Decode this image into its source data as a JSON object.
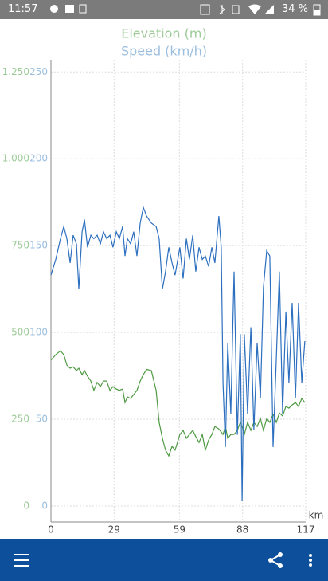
{
  "status_bar": {
    "time": "11:57",
    "battery": "34 %"
  },
  "chart_data": {
    "type": "line",
    "x_label": "km",
    "x": [
      0,
      2.2,
      4.4,
      5.9,
      7.3,
      8.8,
      10.2,
      11.7,
      12.8,
      14.3,
      15.4,
      16.8,
      18.3,
      19.7,
      21.2,
      22.7,
      24.1,
      25.6,
      27.1,
      28.5,
      30,
      31.4,
      32.9,
      34,
      35.1,
      36.6,
      38,
      39.5,
      41,
      42.4,
      43.9,
      46.1,
      48.3,
      49.7,
      51.2,
      52.6,
      54.1,
      55.6,
      57,
      59.2,
      60.7,
      62.2,
      63.6,
      65.1,
      66.5,
      68,
      69.5,
      70.9,
      72.4,
      73.9,
      75.3,
      77.1,
      78.2,
      79,
      80.1,
      81.2,
      82.6,
      84.1,
      85.6,
      87,
      87.8,
      88.8,
      90.3,
      91.8,
      93.2,
      94.7,
      96.2,
      97.6,
      99.1,
      100.5,
      102,
      103.5,
      104.9,
      106.4,
      107.9,
      109.3,
      110.8,
      112.3,
      113.7,
      115.2,
      116.6
    ],
    "series": [
      {
        "name": "Elevation (m)",
        "color": "#4f9a43",
        "label_color": "#9dcb98",
        "axis": "y",
        "values": [
          420,
          436,
          447,
          436,
          406,
          397,
          401,
          390,
          397,
          378,
          390,
          374,
          360,
          333,
          356,
          344,
          360,
          360,
          333,
          344,
          337,
          333,
          337,
          298,
          314,
          310,
          321,
          333,
          360,
          378,
          394,
          390,
          333,
          241,
          195,
          161,
          144,
          172,
          161,
          206,
          218,
          195,
          206,
          218,
          200,
          183,
          206,
          161,
          190,
          206,
          229,
          222,
          213,
          206,
          229,
          195,
          206,
          206,
          218,
          241,
          229,
          206,
          241,
          218,
          241,
          229,
          252,
          218,
          252,
          241,
          264,
          241,
          268,
          259,
          287,
          282,
          291,
          298,
          287,
          310,
          298
        ]
      },
      {
        "name": "Speed (km/h)",
        "color": "#2c6fbf",
        "label_color": "#9cbfdf",
        "axis": "y2",
        "values": [
          133,
          142,
          154,
          161,
          154,
          140,
          156,
          151,
          125,
          158,
          165,
          149,
          156,
          154,
          156,
          151,
          158,
          154,
          156,
          149,
          158,
          154,
          161,
          144,
          154,
          151,
          158,
          144,
          163,
          172,
          167,
          163,
          161,
          154,
          125,
          135,
          149,
          140,
          133,
          149,
          131,
          154,
          142,
          156,
          135,
          149,
          142,
          144,
          138,
          149,
          140,
          167,
          149,
          71,
          34,
          94,
          53,
          135,
          41,
          99,
          3,
          99,
          53,
          103,
          44,
          94,
          62,
          126,
          147,
          144,
          34,
          85,
          135,
          53,
          112,
          71,
          117,
          62,
          117,
          71,
          95
        ]
      }
    ],
    "xlim": [
      0,
      117
    ],
    "xticks": [
      0,
      29,
      59,
      88,
      117
    ],
    "ylim": [
      -46,
      1285
    ],
    "yticks": [
      0,
      250,
      500,
      750,
      {
        "value": 1000,
        "label": "1.000"
      },
      {
        "value": 1250,
        "label": "1.250"
      }
    ],
    "y2lim": [
      -9.2,
      257
    ],
    "y2ticks": [
      0,
      50,
      100,
      150,
      200,
      250
    ],
    "grid": true
  }
}
